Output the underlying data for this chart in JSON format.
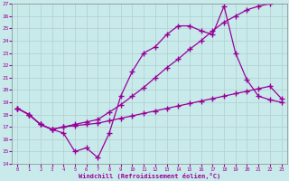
{
  "xlabel": "Windchill (Refroidissement éolien,°C)",
  "bg_color": "#c8eaea",
  "line_color": "#990099",
  "xlim": [
    -0.5,
    23.5
  ],
  "ylim": [
    14,
    27
  ],
  "yticks": [
    14,
    15,
    16,
    17,
    18,
    19,
    20,
    21,
    22,
    23,
    24,
    25,
    26,
    27
  ],
  "xticks": [
    0,
    1,
    2,
    3,
    4,
    5,
    6,
    7,
    8,
    9,
    10,
    11,
    12,
    13,
    14,
    15,
    16,
    17,
    18,
    19,
    20,
    21,
    22,
    23
  ],
  "series": [
    {
      "x": [
        0,
        1,
        2,
        3,
        4,
        5,
        6,
        7,
        8,
        9,
        10,
        11,
        12,
        13,
        14,
        15,
        16,
        17,
        18,
        19,
        20,
        21,
        22,
        23
      ],
      "y": [
        18.5,
        18.0,
        17.2,
        16.8,
        16.5,
        15.0,
        15.3,
        14.5,
        16.5,
        19.5,
        21.5,
        23.0,
        23.5,
        24.5,
        25.2,
        25.2,
        24.8,
        24.5,
        26.8,
        23.0,
        20.8,
        19.5,
        19.2,
        19.0
      ]
    },
    {
      "x": [
        0,
        1,
        2,
        3,
        4,
        5,
        6,
        7,
        8,
        9,
        10,
        11,
        12,
        13,
        14,
        15,
        16,
        17,
        18,
        19,
        20,
        21,
        22,
        23
      ],
      "y": [
        18.5,
        18.0,
        17.2,
        16.8,
        17.0,
        17.1,
        17.2,
        17.3,
        17.5,
        17.7,
        17.9,
        18.1,
        18.3,
        18.5,
        18.7,
        18.9,
        19.1,
        19.3,
        19.5,
        19.7,
        19.9,
        20.1,
        20.3,
        19.3
      ]
    },
    {
      "x": [
        0,
        1,
        2,
        3,
        4,
        5,
        6,
        7,
        8,
        9,
        10,
        11,
        12,
        13,
        14,
        15,
        16,
        17,
        18,
        19,
        20,
        21,
        22,
        23
      ],
      "y": [
        18.5,
        18.0,
        17.2,
        16.8,
        17.0,
        17.2,
        17.4,
        17.6,
        18.2,
        18.8,
        19.5,
        20.2,
        21.0,
        21.8,
        22.5,
        23.3,
        24.0,
        24.8,
        25.5,
        26.0,
        26.5,
        26.8,
        27.0,
        27.2
      ]
    }
  ]
}
